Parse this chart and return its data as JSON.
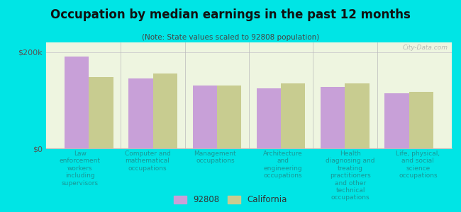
{
  "title": "Occupation by median earnings in the past 12 months",
  "subtitle": "(Note: State values scaled to 92808 population)",
  "categories": [
    "Law\nenforcement\nworkers\nincluding\nsupervisors",
    "Computer and\nmathematical\noccupations",
    "Management\noccupations",
    "Architecture\nand\nengineering\noccupations",
    "Health\ndiagnosing and\ntreating\npractitioners\nand other\ntechnical\noccupations",
    "Life, physical,\nand social\nscience\noccupations"
  ],
  "values_92808": [
    190000,
    145000,
    130000,
    125000,
    128000,
    115000
  ],
  "values_california": [
    148000,
    155000,
    130000,
    135000,
    135000,
    118000
  ],
  "color_92808": "#c8a0d8",
  "color_california": "#c8cc90",
  "background_outer": "#00e5e5",
  "background_plot": "#eef5e0",
  "ylim": [
    0,
    220000
  ],
  "yticks": [
    0,
    200000
  ],
  "ytick_labels": [
    "$0",
    "$200k"
  ],
  "legend_label_92808": "92808",
  "legend_label_california": "California",
  "watermark": "City-Data.com"
}
